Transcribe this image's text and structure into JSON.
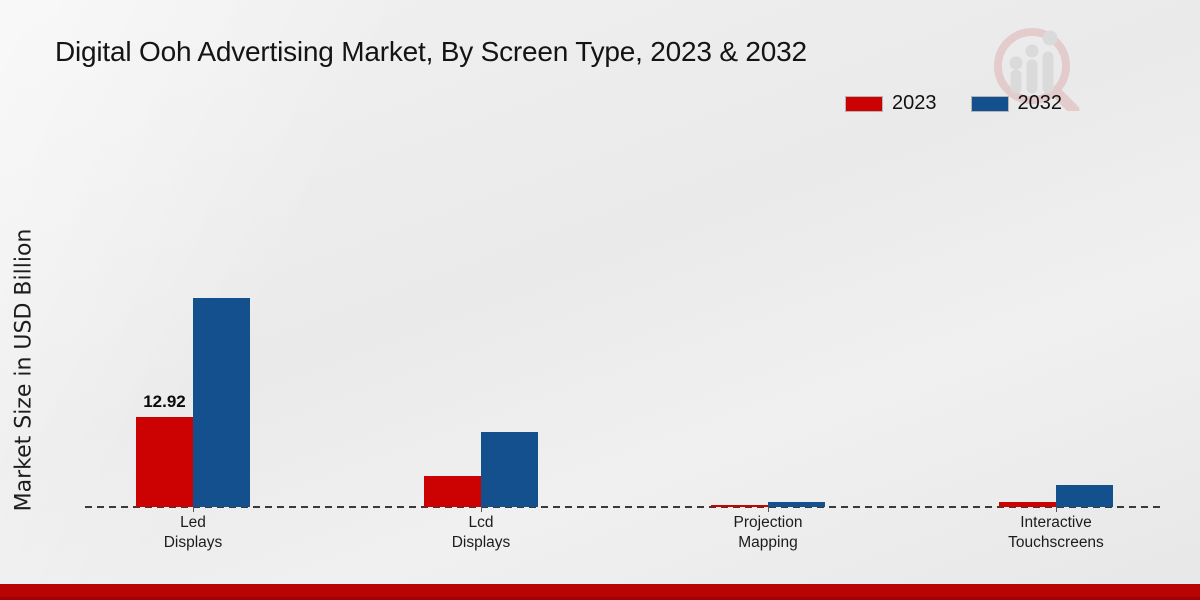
{
  "title": "Digital Ooh Advertising Market, By Screen Type, 2023 & 2032",
  "ylabel": "Market Size in USD Billion",
  "legend": [
    {
      "label": "2023",
      "color": "#cc0202"
    },
    {
      "label": "2032",
      "color": "#14508e"
    }
  ],
  "colors": {
    "red_2023": "#cc0202",
    "blue_2032": "#14508e",
    "footer": "#b80404",
    "dash": "#3a3a3a"
  },
  "watermark_icon": "magnifier-bar-chart-logo",
  "chart_data": {
    "type": "bar",
    "categories": [
      [
        "Led",
        "Displays"
      ],
      [
        "Lcd",
        "Displays"
      ],
      [
        "Projection",
        "Mapping"
      ],
      [
        "Interactive",
        "Touchscreens"
      ]
    ],
    "series": [
      {
        "name": "2023",
        "color": "#cc0202",
        "values": [
          12.92,
          4.45,
          0.3,
          0.72
        ]
      },
      {
        "name": "2032",
        "color": "#14508e",
        "values": [
          30.0,
          10.8,
          0.65,
          3.2
        ]
      }
    ],
    "annotations": [
      {
        "text": "12.92",
        "series_index": 0,
        "category_index": 0
      }
    ],
    "title": "Digital Ooh Advertising Market, By Screen Type, 2023 & 2032",
    "xlabel": "",
    "ylabel": "Market Size in USD Billion",
    "ylim": [
      0,
      32
    ],
    "grid": false,
    "y_axis_ticks_visible": false,
    "baseline_style": "dashed",
    "legend_position": "top-right"
  }
}
